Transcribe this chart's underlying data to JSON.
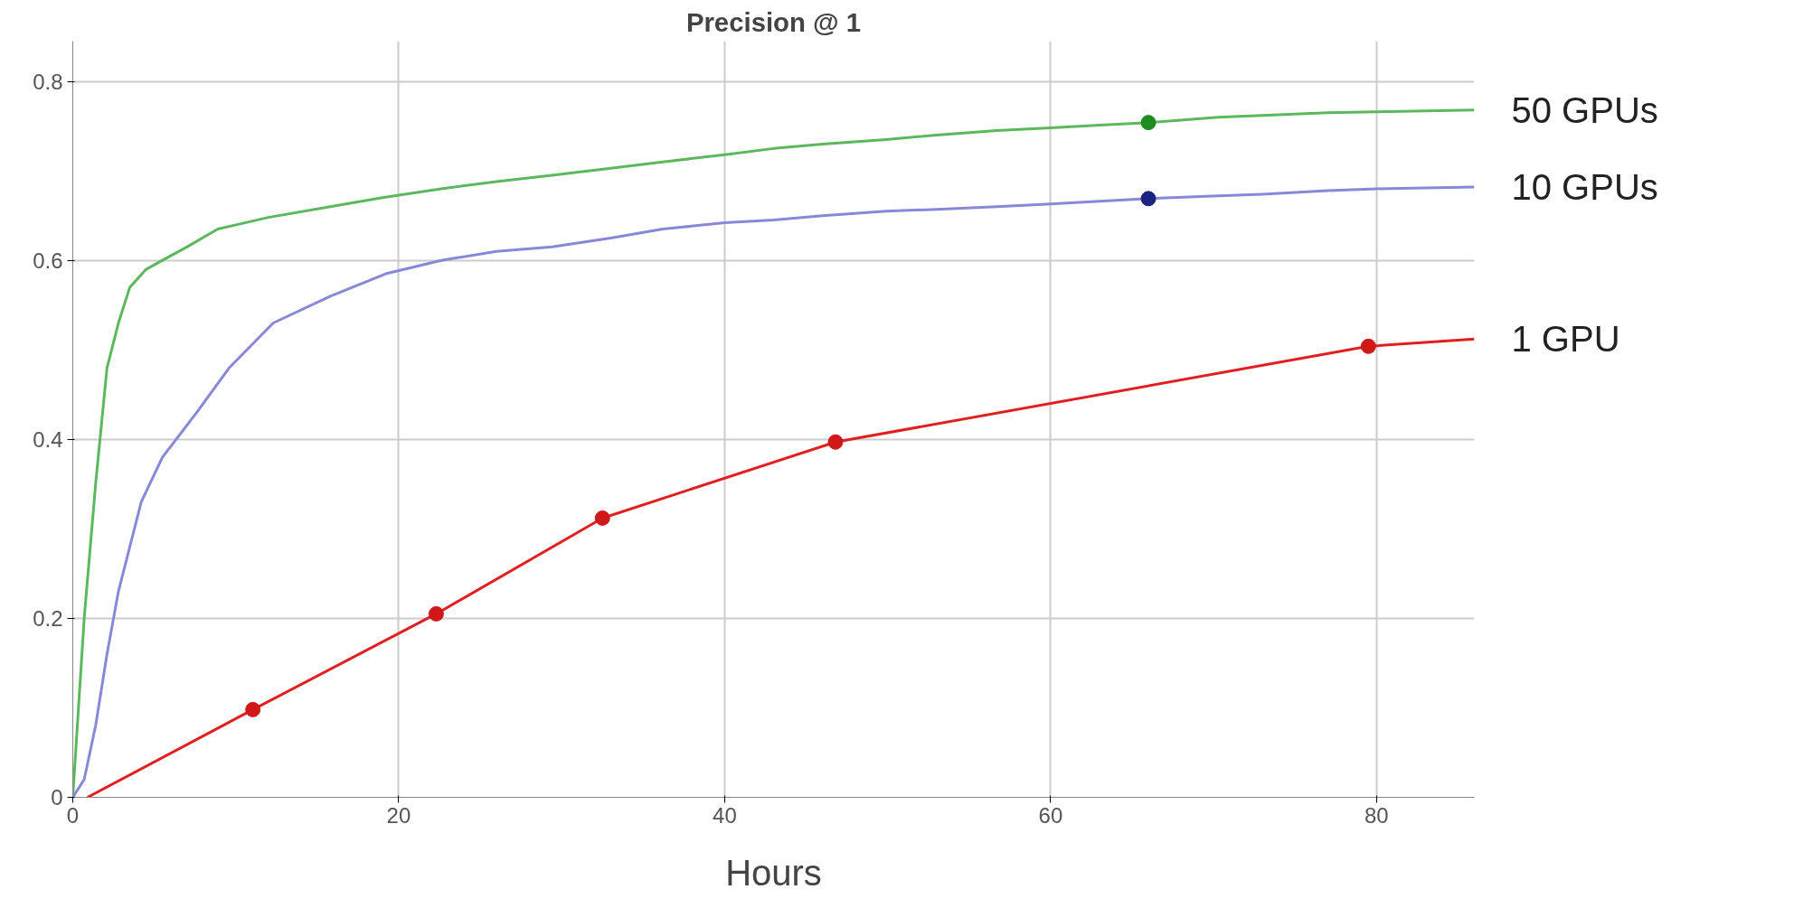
{
  "chart_data": {
    "type": "line",
    "title": "Precision @ 1",
    "xlabel": "Hours",
    "xlim": [
      0,
      86
    ],
    "ylim": [
      0,
      0.845
    ],
    "xticks": [
      0,
      20,
      40,
      60,
      80
    ],
    "yticks": [
      0,
      0.2,
      0.4,
      0.6,
      0.8
    ],
    "grid": true,
    "marker": "none",
    "line_style": "solid",
    "series": [
      {
        "name": "50 GPUs",
        "color": "#5cb85c",
        "x": [
          0,
          0.7,
          1.4,
          2.1,
          2.8,
          3.5,
          4.5,
          5.5,
          7,
          8.9,
          12,
          15.8,
          19,
          22.6,
          26,
          29.4,
          33,
          36.2,
          40,
          43,
          46,
          49.9,
          53,
          56.7,
          60,
          63,
          66,
          70.3,
          73,
          77,
          80,
          83,
          86
        ],
        "values": [
          0,
          0.2,
          0.35,
          0.48,
          0.53,
          0.57,
          0.59,
          0.6,
          0.615,
          0.635,
          0.648,
          0.66,
          0.67,
          0.68,
          0.688,
          0.695,
          0.703,
          0.71,
          0.718,
          0.725,
          0.73,
          0.735,
          0.74,
          0.745,
          0.748,
          0.751,
          0.754,
          0.76,
          0.762,
          0.765,
          0.766,
          0.767,
          0.768
        ]
      },
      {
        "name": "10 GPUs",
        "color": "#8888d8",
        "x": [
          0,
          0.7,
          1.4,
          2.1,
          2.8,
          4.2,
          5.5,
          7.6,
          9.6,
          12.3,
          15.8,
          19.2,
          22.6,
          26,
          29.4,
          33,
          36.2,
          40,
          43,
          46,
          49.9,
          53,
          56.7,
          60,
          63,
          66,
          70.3,
          73,
          77,
          80,
          83,
          86
        ],
        "values": [
          0,
          0.02,
          0.08,
          0.16,
          0.23,
          0.33,
          0.38,
          0.43,
          0.48,
          0.53,
          0.56,
          0.585,
          0.6,
          0.61,
          0.615,
          0.625,
          0.635,
          0.642,
          0.645,
          0.65,
          0.655,
          0.657,
          0.66,
          0.663,
          0.666,
          0.669,
          0.672,
          0.674,
          0.678,
          0.68,
          0.681,
          0.682
        ]
      },
      {
        "name": "1 GPU",
        "color": "#e02020",
        "x": [
          0.9,
          11.05,
          22.3,
          32.5,
          46.8,
          79.5,
          86
        ],
        "values": [
          0,
          0.098,
          0.205,
          0.312,
          0.397,
          0.504,
          0.512
        ]
      },
      {
        "type": "scatter",
        "marker": "circle",
        "color": "#d01818",
        "x": [
          11.05,
          22.3,
          32.5,
          46.8,
          79.5
        ],
        "values": [
          0.098,
          0.205,
          0.312,
          0.397,
          0.504
        ]
      },
      {
        "type": "scatter",
        "marker": "circle",
        "color": "#1e8c1e",
        "x": [
          66
        ],
        "values": [
          0.754
        ]
      },
      {
        "type": "scatter",
        "marker": "circle",
        "color": "#1a237e",
        "x": [
          66
        ],
        "values": [
          0.669
        ]
      }
    ]
  }
}
